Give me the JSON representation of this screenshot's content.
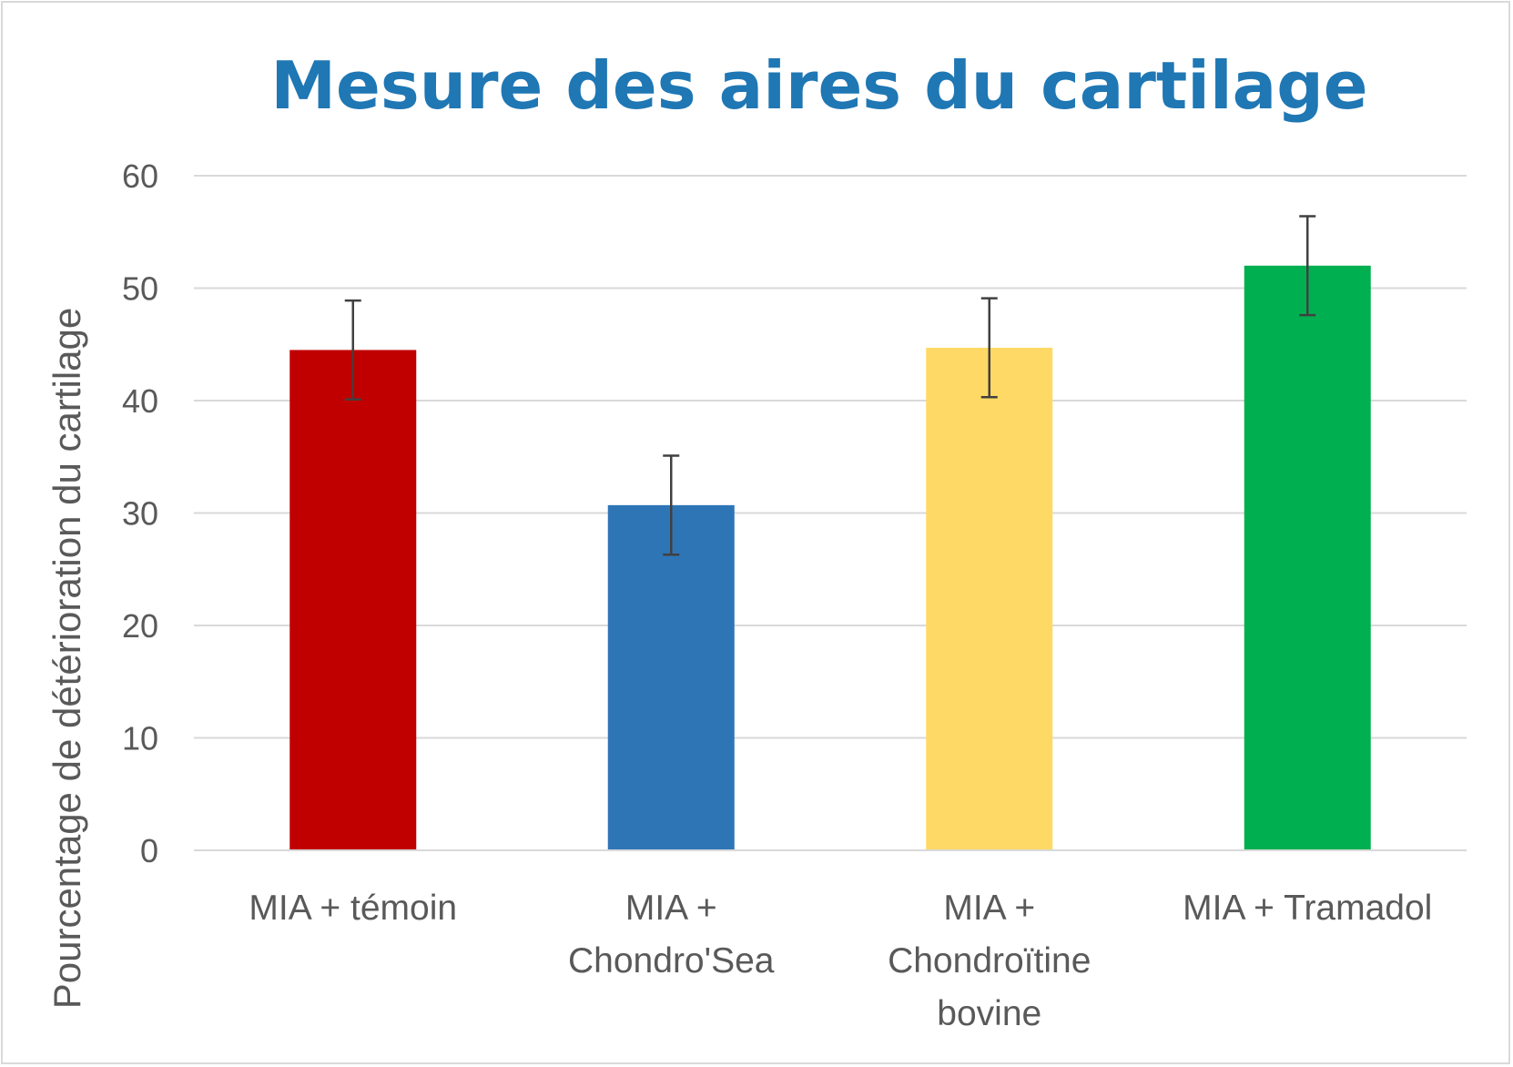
{
  "chart_data": {
    "type": "bar",
    "title": "Mesure des aires du cartilage",
    "xlabel": "",
    "ylabel": "Pourcentage de détérioration du cartilage",
    "ylim": [
      0,
      60
    ],
    "yticks": [
      0,
      10,
      20,
      30,
      40,
      50,
      60
    ],
    "grid": true,
    "legend": "none",
    "categories": [
      [
        "MIA + témoin"
      ],
      [
        "MIA +",
        "Chondro'Sea"
      ],
      [
        "MIA +",
        "Chondroïtine",
        "bovine"
      ],
      [
        "MIA + Tramadol"
      ]
    ],
    "values": [
      44.5,
      30.7,
      44.7,
      52.0
    ],
    "error": [
      4.4,
      4.4,
      4.4,
      4.4
    ],
    "colors": [
      "#c00000",
      "#2e75b6",
      "#ffd966",
      "#00b050"
    ],
    "title_color": "#1f77b4",
    "grid_color": "#d9d9d9",
    "error_color": "#404040"
  }
}
